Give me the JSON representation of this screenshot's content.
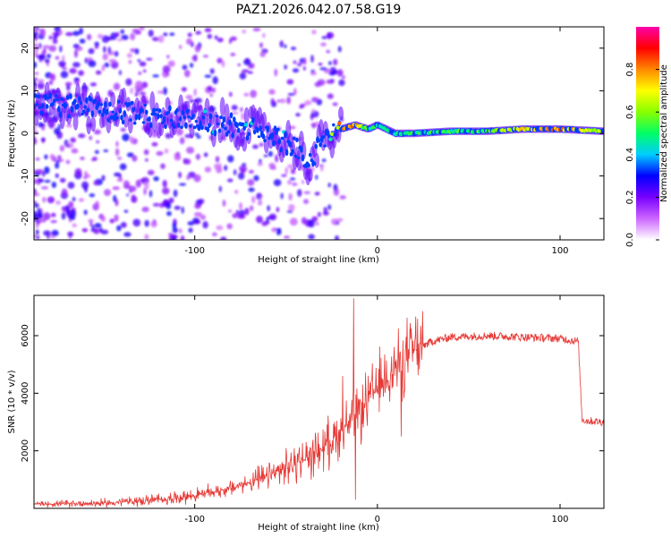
{
  "chart_data": [
    {
      "type": "heatmap",
      "title": "PAZ1.2026.042.07.58.G19",
      "xlabel": "Height of straight line (km)",
      "ylabel": "Frequency (Hz)",
      "xlim": [
        -188,
        124
      ],
      "ylim": [
        -25,
        25
      ],
      "xticks": [
        -100,
        0,
        100
      ],
      "yticks": [
        -20,
        -10,
        0,
        10,
        20
      ],
      "colorbar": {
        "label": "Normalized spectral amplitude",
        "range": [
          0,
          1
        ],
        "ticks": [
          "0.0",
          "0.2",
          "0.4",
          "0.6",
          "0.8"
        ],
        "colors": [
          "#ffffff",
          "#cc66ff",
          "#7700ff",
          "#0000ff",
          "#00ccff",
          "#00ff66",
          "#88ff00",
          "#ffff00",
          "#ff8800",
          "#ff0000",
          "#ff00aa"
        ]
      },
      "ridge": {
        "x": [
          -185,
          -160,
          -140,
          -120,
          -100,
          -80,
          -60,
          -45,
          -37,
          -30,
          -20,
          -12,
          -5,
          0,
          10,
          20,
          40,
          60,
          80,
          100,
          124
        ],
        "freq": [
          7,
          6,
          5,
          4,
          3,
          2,
          0,
          -3,
          -7,
          -2,
          1,
          2,
          1,
          2,
          0,
          0,
          0.5,
          0.5,
          1,
          1,
          0.5
        ],
        "amplitude": [
          0.3,
          0.3,
          0.3,
          0.3,
          0.3,
          0.3,
          0.3,
          0.3,
          0.3,
          0.4,
          0.75,
          0.8,
          0.45,
          0.5,
          0.45,
          0.5,
          0.5,
          0.55,
          0.7,
          0.8,
          0.6
        ]
      }
    },
    {
      "type": "line",
      "title": "",
      "xlabel": "Height of straight line (km)",
      "ylabel": "SNR (10 * v/v)",
      "xlim": [
        -188,
        124
      ],
      "ylim": [
        0,
        7400
      ],
      "xticks": [
        -100,
        0,
        100
      ],
      "yticks": [
        2000,
        4000,
        6000
      ],
      "color": "#e53935",
      "trend": {
        "x": [
          -188,
          -150,
          -120,
          -100,
          -80,
          -60,
          -50,
          -40,
          -30,
          -20,
          -10,
          0,
          10,
          20,
          30,
          40,
          60,
          80,
          100,
          110,
          112,
          114,
          124
        ],
        "y": [
          150,
          180,
          300,
          450,
          700,
          1100,
          1400,
          1700,
          2100,
          2700,
          3300,
          4200,
          4900,
          5500,
          5800,
          5950,
          6000,
          5950,
          5900,
          5800,
          3100,
          3050,
          3000
        ]
      },
      "spikes": [
        {
          "x": -13,
          "y": 7300
        },
        {
          "x": -12,
          "y": 300
        },
        {
          "x": -19,
          "y": 4600
        },
        {
          "x": 13,
          "y": 2500
        }
      ]
    }
  ]
}
